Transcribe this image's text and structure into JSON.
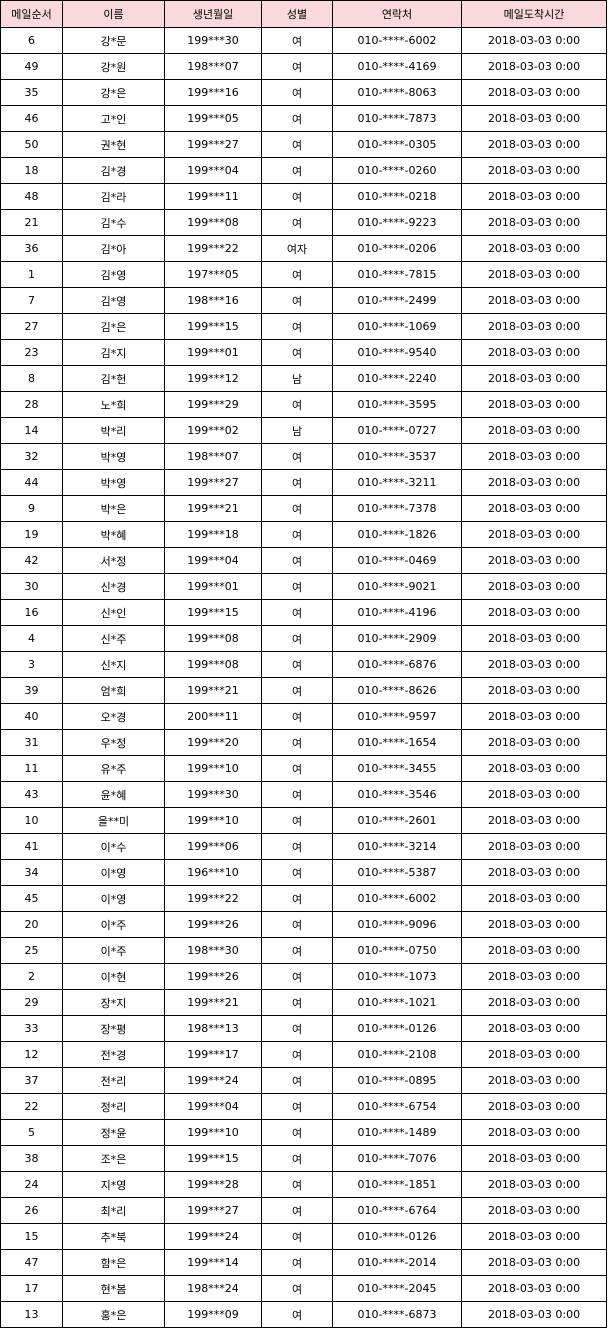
{
  "headers": [
    "메일순서",
    "이름",
    "생년월일",
    "성별",
    "연락처",
    "메일도착시간"
  ],
  "rows": [
    [
      "6",
      "강*문",
      "199***30",
      "여",
      "010-****-6002",
      "2018-03-03 0:00"
    ],
    [
      "49",
      "강*원",
      "198***07",
      "여",
      "010-****-4169",
      "2018-03-03 0:00"
    ],
    [
      "35",
      "강*은",
      "199***16",
      "여",
      "010-****-8063",
      "2018-03-03 0:00"
    ],
    [
      "46",
      "고*인",
      "199***05",
      "여",
      "010-****-7873",
      "2018-03-03 0:00"
    ],
    [
      "50",
      "권*현",
      "199***27",
      "여",
      "010-****-0305",
      "2018-03-03 0:00"
    ],
    [
      "18",
      "김*경",
      "199***04",
      "여",
      "010-****-0260",
      "2018-03-03 0:00"
    ],
    [
      "48",
      "김*라",
      "199***11",
      "여",
      "010-****-0218",
      "2018-03-03 0:00"
    ],
    [
      "21",
      "김*수",
      "199***08",
      "여",
      "010-****-9223",
      "2018-03-03 0:00"
    ],
    [
      "36",
      "김*아",
      "199***22",
      "여자",
      "010-****-0206",
      "2018-03-03 0:00"
    ],
    [
      "1",
      "김*영",
      "197***05",
      "여",
      "010-****-7815",
      "2018-03-03 0:00"
    ],
    [
      "7",
      "김*영",
      "198***16",
      "여",
      "010-****-2499",
      "2018-03-03 0:00"
    ],
    [
      "27",
      "김*은",
      "199***15",
      "여",
      "010-****-1069",
      "2018-03-03 0:00"
    ],
    [
      "23",
      "김*지",
      "199***01",
      "여",
      "010-****-9540",
      "2018-03-03 0:00"
    ],
    [
      "8",
      "김*헌",
      "199***12",
      "남",
      "010-****-2240",
      "2018-03-03 0:00"
    ],
    [
      "28",
      "노*희",
      "199***29",
      "여",
      "010-****-3595",
      "2018-03-03 0:00"
    ],
    [
      "14",
      "박*리",
      "199***02",
      "남",
      "010-****-0727",
      "2018-03-03 0:00"
    ],
    [
      "32",
      "박*영",
      "198***07",
      "여",
      "010-****-3537",
      "2018-03-03 0:00"
    ],
    [
      "44",
      "박*영",
      "199***27",
      "여",
      "010-****-3211",
      "2018-03-03 0:00"
    ],
    [
      "9",
      "박*은",
      "199***21",
      "여",
      "010-****-7378",
      "2018-03-03 0:00"
    ],
    [
      "19",
      "박*혜",
      "199***18",
      "여",
      "010-****-1826",
      "2018-03-03 0:00"
    ],
    [
      "42",
      "서*정",
      "199***04",
      "여",
      "010-****-0469",
      "2018-03-03 0:00"
    ],
    [
      "30",
      "신*경",
      "199***01",
      "여",
      "010-****-9021",
      "2018-03-03 0:00"
    ],
    [
      "16",
      "신*인",
      "199***15",
      "여",
      "010-****-4196",
      "2018-03-03 0:00"
    ],
    [
      "4",
      "신*주",
      "199***08",
      "여",
      "010-****-2909",
      "2018-03-03 0:00"
    ],
    [
      "3",
      "신*지",
      "199***08",
      "여",
      "010-****-6876",
      "2018-03-03 0:00"
    ],
    [
      "39",
      "엄*희",
      "199***21",
      "여",
      "010-****-8626",
      "2018-03-03 0:00"
    ],
    [
      "40",
      "오*경",
      "200***11",
      "여",
      "010-****-9597",
      "2018-03-03 0:00"
    ],
    [
      "31",
      "우*정",
      "199***20",
      "여",
      "010-****-1654",
      "2018-03-03 0:00"
    ],
    [
      "11",
      "유*주",
      "199***10",
      "여",
      "010-****-3455",
      "2018-03-03 0:00"
    ],
    [
      "43",
      "윤*혜",
      "199***30",
      "여",
      "010-****-3546",
      "2018-03-03 0:00"
    ],
    [
      "10",
      "을**미",
      "199***10",
      "여",
      "010-****-2601",
      "2018-03-03 0:00"
    ],
    [
      "41",
      "이*수",
      "199***06",
      "여",
      "010-****-3214",
      "2018-03-03 0:00"
    ],
    [
      "34",
      "이*영",
      "196***10",
      "여",
      "010-****-5387",
      "2018-03-03 0:00"
    ],
    [
      "45",
      "이*영",
      "199***22",
      "여",
      "010-****-6002",
      "2018-03-03 0:00"
    ],
    [
      "20",
      "이*주",
      "199***26",
      "여",
      "010-****-9096",
      "2018-03-03 0:00"
    ],
    [
      "25",
      "이*주",
      "198***30",
      "여",
      "010-****-0750",
      "2018-03-03 0:00"
    ],
    [
      "2",
      "이*현",
      "199***26",
      "여",
      "010-****-1073",
      "2018-03-03 0:00"
    ],
    [
      "29",
      "장*지",
      "199***21",
      "여",
      "010-****-1021",
      "2018-03-03 0:00"
    ],
    [
      "33",
      "장*평",
      "198***13",
      "여",
      "010-****-0126",
      "2018-03-03 0:00"
    ],
    [
      "12",
      "전*경",
      "199***17",
      "여",
      "010-****-2108",
      "2018-03-03 0:00"
    ],
    [
      "37",
      "전*리",
      "199***24",
      "여",
      "010-****-0895",
      "2018-03-03 0:00"
    ],
    [
      "22",
      "정*리",
      "199***04",
      "여",
      "010-****-6754",
      "2018-03-03 0:00"
    ],
    [
      "5",
      "정*윤",
      "199***10",
      "여",
      "010-****-1489",
      "2018-03-03 0:00"
    ],
    [
      "38",
      "조*은",
      "199***15",
      "여",
      "010-****-7076",
      "2018-03-03 0:00"
    ],
    [
      "24",
      "지*영",
      "199***28",
      "여",
      "010-****-1851",
      "2018-03-03 0:00"
    ],
    [
      "26",
      "최*리",
      "199***27",
      "여",
      "010-****-6764",
      "2018-03-03 0:00"
    ],
    [
      "15",
      "추*북",
      "199***24",
      "여",
      "010-****-0126",
      "2018-03-03 0:00"
    ],
    [
      "47",
      "함*은",
      "199***14",
      "여",
      "010-****-2014",
      "2018-03-03 0:00"
    ],
    [
      "17",
      "현*봄",
      "198***24",
      "여",
      "010-****-2045",
      "2018-03-03 0:00"
    ],
    [
      "13",
      "홍*은",
      "199***09",
      "여",
      "010-****-6873",
      "2018-03-03 0:00"
    ]
  ],
  "colors": {
    "header_background": "#f9d9de",
    "grid_lines": "#000000"
  }
}
